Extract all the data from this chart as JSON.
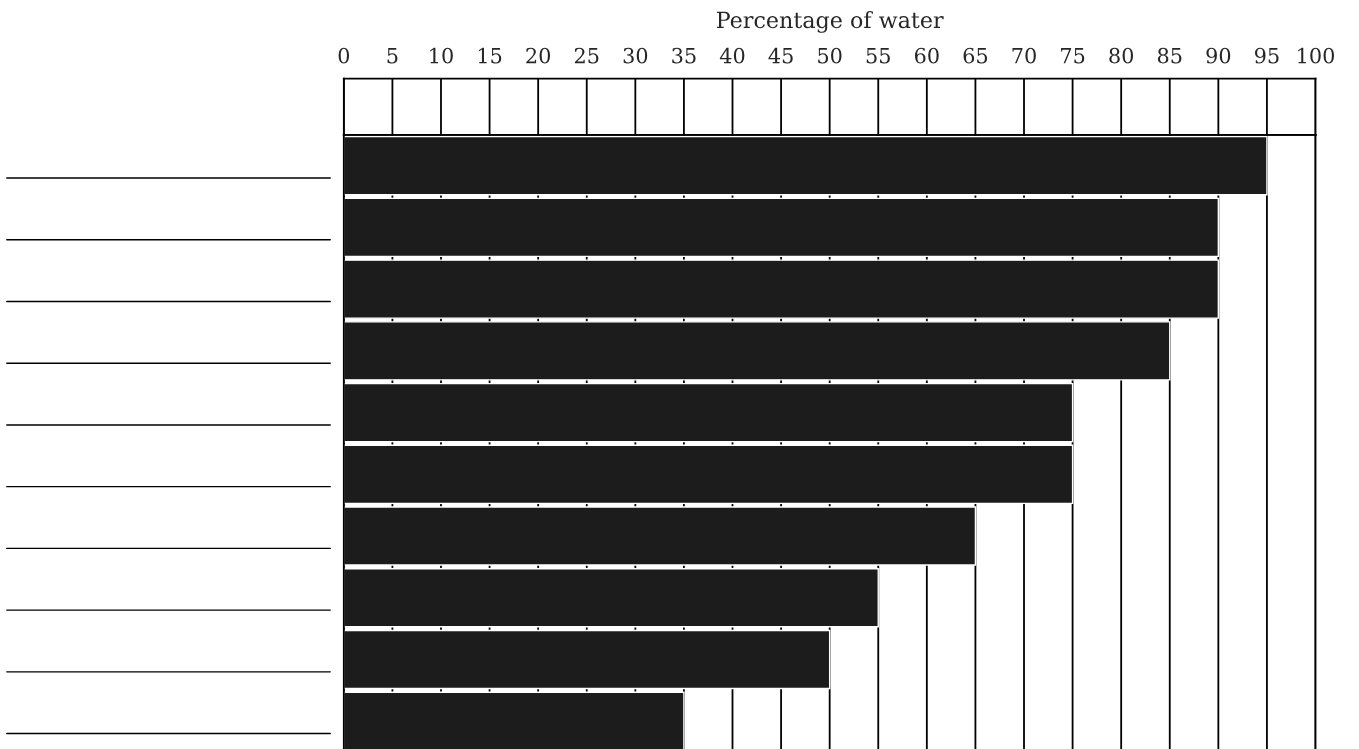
{
  "chart_data": {
    "type": "bar",
    "orientation": "horizontal",
    "xlabel": "Percentage of water",
    "categories": [
      null,
      null,
      null,
      null,
      null,
      null,
      null,
      null,
      null,
      null
    ],
    "values": [
      95,
      90,
      90,
      85,
      75,
      75,
      65,
      55,
      50,
      35
    ],
    "color": "#1c1c1c",
    "xlim": [
      0,
      100
    ],
    "xticks": [
      0,
      5,
      10,
      15,
      20,
      25,
      30,
      35,
      40,
      45,
      50,
      55,
      60,
      65,
      70,
      75,
      80,
      85,
      90,
      95,
      100
    ],
    "grid": "x",
    "legend": false
  }
}
